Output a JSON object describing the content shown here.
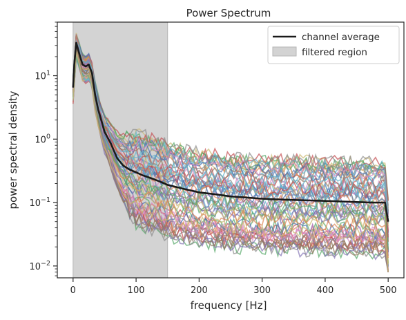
{
  "chart_data": {
    "type": "line",
    "title": "Power Spectrum",
    "xlabel": "frequency [Hz]",
    "ylabel": "power spectral density",
    "x_ticks": [
      0,
      100,
      200,
      300,
      400,
      500
    ],
    "y_scale": "log",
    "y_ticks": [
      {
        "value": 0.01,
        "base": "10",
        "exp": "−2"
      },
      {
        "value": 0.1,
        "base": "10",
        "exp": "−1"
      },
      {
        "value": 1,
        "base": "10",
        "exp": "0"
      },
      {
        "value": 10,
        "base": "10",
        "exp": "1"
      }
    ],
    "xlim": [
      -25,
      525
    ],
    "ylim": [
      0.0065,
      70
    ],
    "grid": false,
    "legend_position": "top-right",
    "legend": [
      {
        "label": "channel average",
        "kind": "line",
        "color": "#1a1a1a"
      },
      {
        "label": "filtered region",
        "kind": "patch",
        "color": "#d3d3d3"
      }
    ],
    "filtered_region": [
      0,
      150
    ],
    "series": [
      {
        "name": "channel average",
        "color": "#1a1a1a",
        "x": [
          0,
          2,
          5,
          10,
          15,
          20,
          25,
          30,
          35,
          40,
          50,
          60,
          70,
          80,
          90,
          100,
          110,
          120,
          130,
          140,
          150,
          175,
          200,
          225,
          250,
          275,
          300,
          325,
          350,
          375,
          400,
          425,
          450,
          475,
          495,
          500
        ],
        "y": [
          6.5,
          15,
          33,
          22,
          15,
          14,
          15,
          11,
          5,
          2.9,
          1.3,
          0.85,
          0.5,
          0.38,
          0.33,
          0.3,
          0.27,
          0.25,
          0.23,
          0.21,
          0.19,
          0.165,
          0.145,
          0.135,
          0.125,
          0.12,
          0.115,
          0.112,
          0.11,
          0.108,
          0.106,
          0.104,
          0.102,
          0.1,
          0.1,
          0.05
        ]
      }
    ],
    "channel_traces": {
      "count": 60,
      "peak_range": [
        3.5,
        45
      ],
      "tail_range": [
        0.015,
        0.45
      ],
      "palette": [
        "#4c72b0",
        "#dd8452",
        "#55a868",
        "#c44e52",
        "#8172b3",
        "#937860",
        "#da8bc3",
        "#8c8c8c",
        "#ccb974",
        "#64b5cd"
      ]
    }
  }
}
